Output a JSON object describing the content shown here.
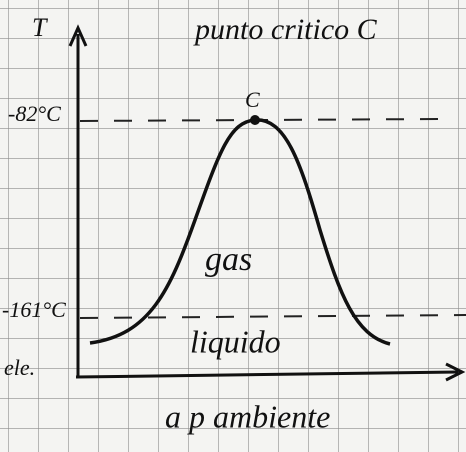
{
  "diagram": {
    "title": "punto critico C",
    "y_axis_label": "T",
    "x_axis_label": "a p ambiente",
    "critical_point_label": "C",
    "upper_temp_label": "-82°C",
    "lower_temp_label": "-161°C",
    "left_edge_label": "ele.",
    "region_upper": "gas",
    "region_lower": "liquido"
  }
}
